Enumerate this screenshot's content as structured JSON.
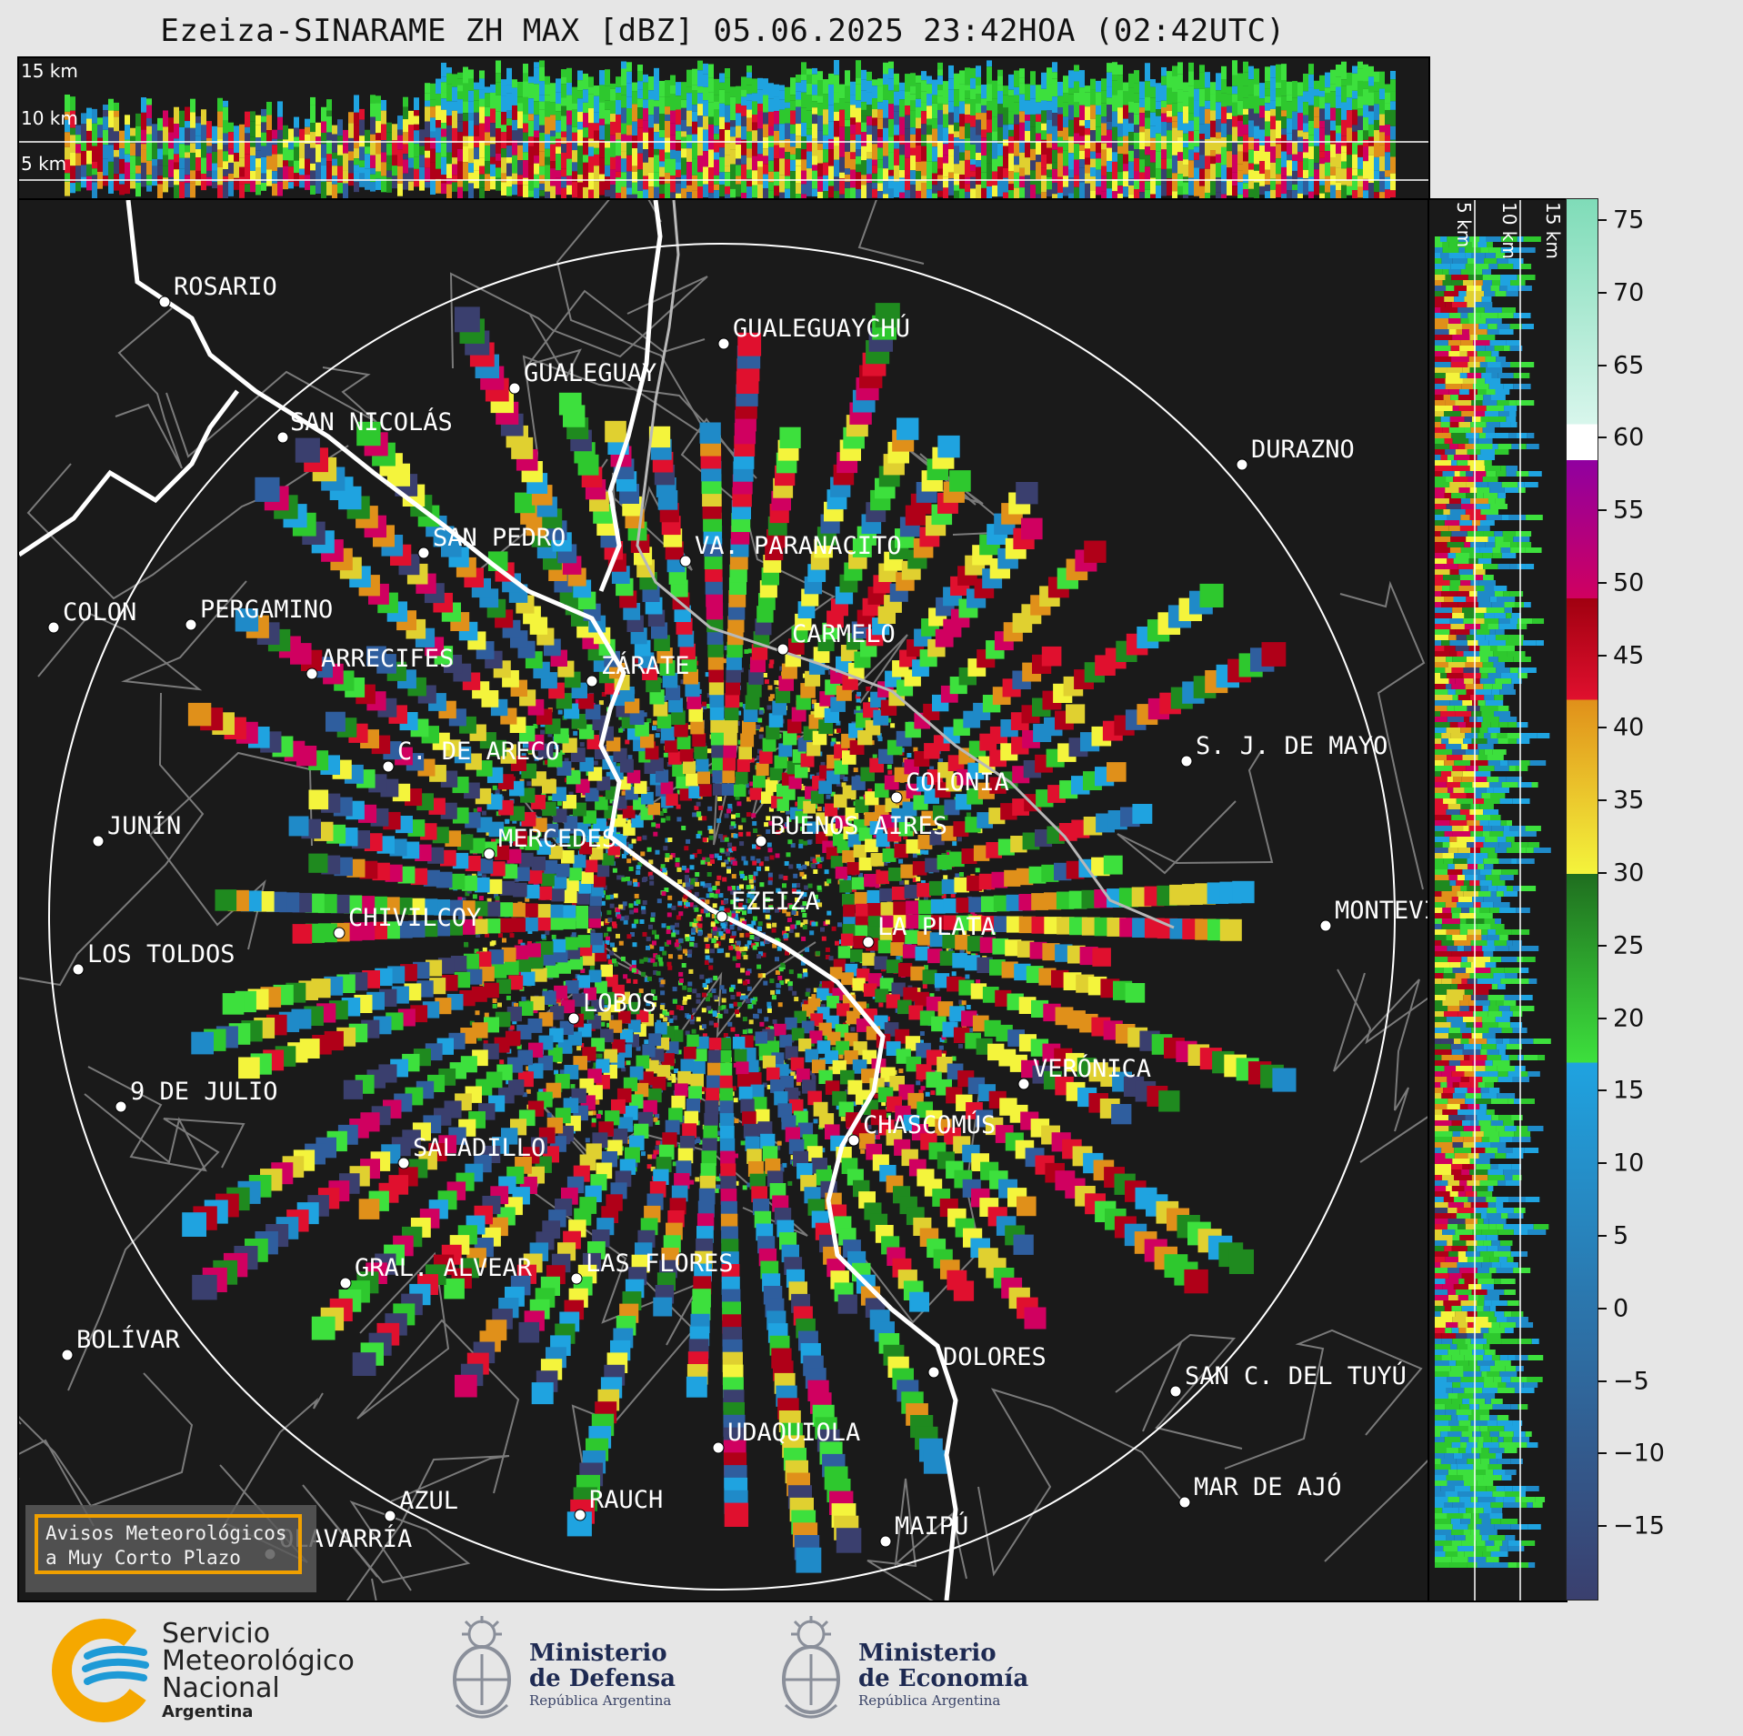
{
  "title": "Ezeiza-SINARAME ZH MAX [dBZ] 05.06.2025 23:42HOA (02:42UTC)",
  "top_strip": {
    "height_labels": [
      "15 km",
      "10 km",
      "5 km"
    ]
  },
  "right_strip": {
    "height_labels": [
      "5 km",
      "10 km",
      "15 km"
    ]
  },
  "colorbar": {
    "ticks": [
      "75",
      "70",
      "65",
      "60",
      "55",
      "50",
      "45",
      "40",
      "35",
      "30",
      "25",
      "20",
      "15",
      "10",
      "5",
      "0",
      "−5",
      "−10",
      "−15"
    ],
    "min": -20,
    "max": 76.5,
    "stops": [
      {
        "from": -20,
        "to": 17,
        "color_top": "#1fa3e0",
        "color_bottom": "#3a3f6e"
      },
      {
        "from": 17,
        "to": 30,
        "color_top": "#1f6e1f",
        "color_bottom": "#3de03d"
      },
      {
        "from": 30,
        "to": 42,
        "color_top": "#e0901a",
        "color_bottom": "#f4f43c"
      },
      {
        "from": 42,
        "to": 49,
        "color_top": "#a00010",
        "color_bottom": "#e0102e"
      },
      {
        "from": 49,
        "to": 58.5,
        "color_top": "#9000a0",
        "color_bottom": "#d00060"
      },
      {
        "from": 58.5,
        "to": 61,
        "color_top": "#ffffff",
        "color_bottom": "#ffffff"
      },
      {
        "from": 61,
        "to": 76.5,
        "color_top": "#7fdcb8",
        "color_bottom": "#d8f6ec"
      }
    ]
  },
  "cities": [
    {
      "name": "ROSARIO"
    },
    {
      "name": "GUALEGUAYCHÚ"
    },
    {
      "name": "GUALEGUAY"
    },
    {
      "name": "SAN NICOLÁS"
    },
    {
      "name": "DURAZNO"
    },
    {
      "name": "SAN PEDRO"
    },
    {
      "name": "VA. PARANACITO"
    },
    {
      "name": "COLON"
    },
    {
      "name": "PERGAMINO"
    },
    {
      "name": "CARMELO"
    },
    {
      "name": "ARRECIFES"
    },
    {
      "name": "ZÁRATE"
    },
    {
      "name": "C. DE ARECO"
    },
    {
      "name": "S. J. DE MAYO"
    },
    {
      "name": "COLONIA"
    },
    {
      "name": "JUNÍN"
    },
    {
      "name": "BUENOS AIRES"
    },
    {
      "name": "MERCEDES"
    },
    {
      "name": "EZEIZA"
    },
    {
      "name": "MONTEVIDEO"
    },
    {
      "name": "CHIVILCOY"
    },
    {
      "name": "LA PLATA"
    },
    {
      "name": "LOS TOLDOS"
    },
    {
      "name": "LOBOS"
    },
    {
      "name": "VERÓNICA"
    },
    {
      "name": "9 DE JULIO"
    },
    {
      "name": "CHASCOMÚS"
    },
    {
      "name": "SALADILLO"
    },
    {
      "name": "GRAL. ALVEAR"
    },
    {
      "name": "LAS FLORES"
    },
    {
      "name": "BOLÍVAR"
    },
    {
      "name": "DOLORES"
    },
    {
      "name": "SAN C. DEL TUYÚ"
    },
    {
      "name": "UDAQUIOLA"
    },
    {
      "name": "MAR DE AJÓ"
    },
    {
      "name": "AZUL"
    },
    {
      "name": "RAUCH"
    },
    {
      "name": "OLAVARRÍA"
    },
    {
      "name": "MAIPÚ"
    }
  ],
  "avisos": {
    "line1": "Avisos Meteorológicos",
    "line2": "a Muy Corto Plazo"
  },
  "logos": {
    "smn": {
      "line1": "Servicio",
      "line2": "Meteorológico",
      "line3": "Nacional",
      "line4": "Argentina"
    },
    "defensa": {
      "line1": "Ministerio",
      "line2": "de Defensa",
      "line3": "República Argentina"
    },
    "economia": {
      "line1": "Ministerio",
      "line2": "de Economía",
      "line3": "República Argentina"
    }
  },
  "colors": {
    "background": "#e6e6e6",
    "panel": "#1a1a1a",
    "range_ring": "#ffffff",
    "coast": "#ffffff",
    "admin_borders": "#7a7a7a",
    "avisos_border": "#f0a000",
    "smn_orange": "#f5a800",
    "smn_blue": "#1e9ad6"
  }
}
